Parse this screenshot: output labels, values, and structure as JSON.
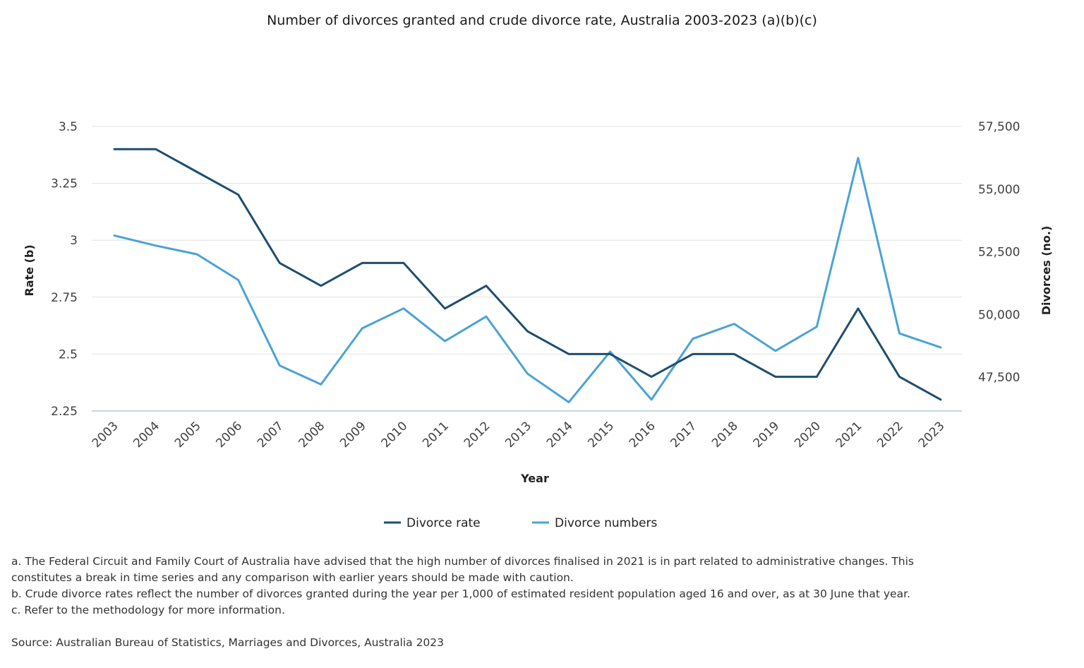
{
  "title": "Number of divorces granted and crude divorce rate, Australia 2003-2023 (a)(b)(c)",
  "chart_data": {
    "type": "line",
    "title": "Number of divorces granted and crude divorce rate, Australia 2003-2023 (a)(b)(c)",
    "xlabel": "Year",
    "ylabel_left": "Rate (b)",
    "ylabel_right": "Divorces (no.)",
    "categories": [
      "2003",
      "2004",
      "2005",
      "2006",
      "2007",
      "2008",
      "2009",
      "2010",
      "2011",
      "2012",
      "2013",
      "2014",
      "2015",
      "2016",
      "2017",
      "2018",
      "2019",
      "2020",
      "2021",
      "2022",
      "2023"
    ],
    "ylim_left": [
      2.25,
      3.5
    ],
    "yticks_left": [
      2.25,
      2.5,
      2.75,
      3,
      3.25,
      3.5
    ],
    "yticks_left_labels": [
      "2.25",
      "2.5",
      "2.75",
      "3",
      "3.25",
      "3.5"
    ],
    "ylim_right": [
      46150,
      57500
    ],
    "yticks_right": [
      47500,
      50000,
      52500,
      55000,
      57500
    ],
    "yticks_right_labels": [
      "47,500",
      "50,000",
      "52,500",
      "55,000",
      "57,500"
    ],
    "grid": true,
    "legend_position": "bottom-center",
    "series": [
      {
        "name": "Divorce rate",
        "axis": "left",
        "color": "#1d4e70",
        "values": [
          3.4,
          3.4,
          3.3,
          3.2,
          2.9,
          2.8,
          2.9,
          2.9,
          2.7,
          2.8,
          2.6,
          2.5,
          2.5,
          2.4,
          2.5,
          2.5,
          2.4,
          2.4,
          2.7,
          2.4,
          2.3
        ]
      },
      {
        "name": "Divorce numbers",
        "axis": "right",
        "color": "#4aa3d5",
        "values": [
          53145,
          52747,
          52399,
          51375,
          47963,
          47209,
          49448,
          50240,
          48935,
          49917,
          47638,
          46498,
          48517,
          46604,
          49032,
          49625,
          48548,
          49510,
          56244,
          49241,
          48681
        ]
      }
    ]
  },
  "notes": [
    "a. The Federal Circuit and Family Court of Australia have advised that the high number of divorces finalised in 2021 is in part related to administrative changes. This constitutes a break in time series and any comparison with earlier years should be made with caution.",
    "b. Crude divorce rates reflect the number of divorces granted during the year per 1,000 of estimated resident population aged 16 and over, as at 30 June that year.",
    "c. Refer to the methodology for more information."
  ],
  "source": "Source: Australian Bureau of Statistics, Marriages and Divorces, Australia 2023"
}
